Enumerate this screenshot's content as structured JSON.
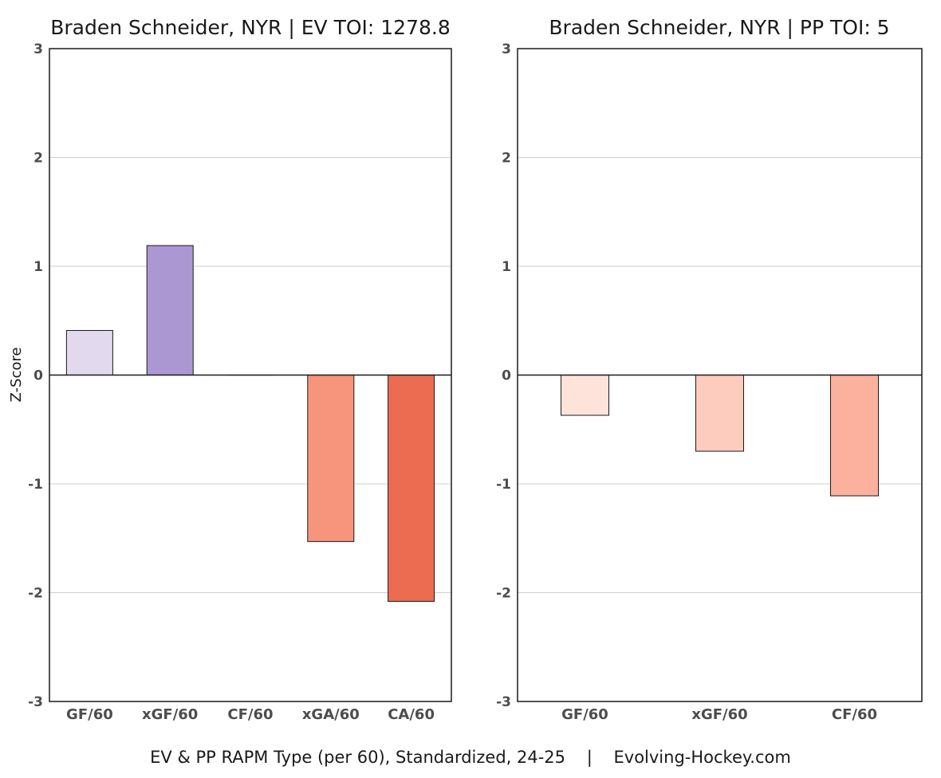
{
  "caption": "EV & PP RAPM Type (per 60), Standardized, 24-25    |    Evolving-Hockey.com",
  "ylabel": "Z-Score",
  "chart_data": [
    {
      "type": "bar",
      "title": "Braden Schneider, NYR  |  EV TOI: 1278.8",
      "xlabel": "",
      "ylabel": "Z-Score",
      "ylim": [
        -3,
        3
      ],
      "yticks": [
        3,
        2,
        1,
        0,
        -1,
        -2,
        -3
      ],
      "ytick_labels": [
        "3",
        "2",
        "1",
        "0",
        "-1",
        "-2",
        "-3"
      ],
      "grid": true,
      "categories": [
        "GF/60",
        "xGF/60",
        "CF/60",
        "xGA/60",
        "CA/60"
      ],
      "values": [
        0.41,
        1.19,
        0.0,
        -1.53,
        -2.08
      ],
      "colors": [
        "#e2d9ee",
        "#ab98d2",
        "#c9b9e0",
        "#f6957b",
        "#eb6c50"
      ]
    },
    {
      "type": "bar",
      "title": "Braden Schneider, NYR  |  PP TOI: 5",
      "xlabel": "",
      "ylabel": "",
      "ylim": [
        -3,
        3
      ],
      "yticks": [
        3,
        2,
        1,
        0,
        -1,
        -2,
        -3
      ],
      "ytick_labels": [
        "3",
        "2",
        "1",
        "0",
        "-1",
        "-2",
        "-3"
      ],
      "grid": true,
      "categories": [
        "GF/60",
        "xGF/60",
        "CF/60"
      ],
      "values": [
        -0.37,
        -0.7,
        -1.11
      ],
      "colors": [
        "#fde3da",
        "#fdccbe",
        "#fbb19e"
      ]
    }
  ]
}
